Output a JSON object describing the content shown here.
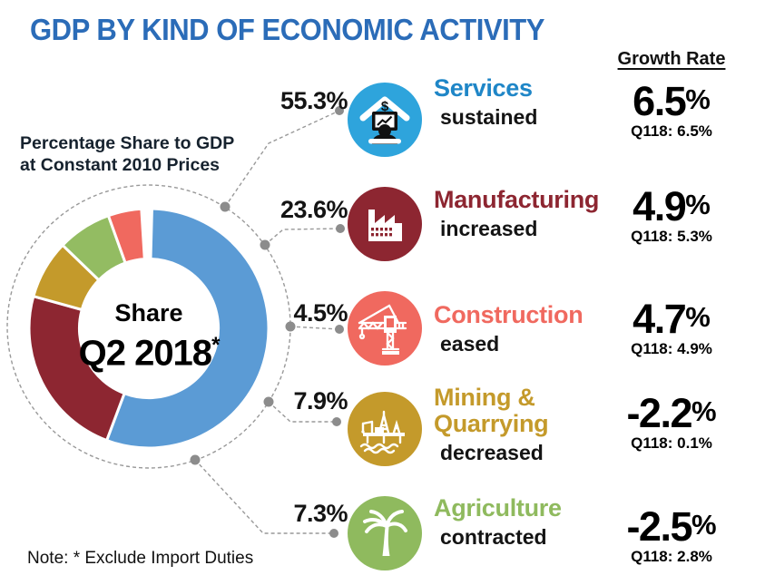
{
  "title": "GDP BY KIND OF ECONOMIC ACTIVITY",
  "growth_header": "Growth Rate",
  "subtitle": {
    "line1": "Percentage Share to GDP",
    "line2": "at Constant 2010 Prices"
  },
  "donut_center": {
    "share_label": "Share",
    "period": "Q2 2018",
    "asterisk": "*"
  },
  "note": "Note: * Exclude Import Duties",
  "percent_sign": "%",
  "colors": {
    "title_blue": "#2B6CB8",
    "services_blue": "#1F86C7",
    "services_icon_bg": "#2EA4DC",
    "manufacturing_red": "#8D2631",
    "construction_salmon": "#F0695F",
    "mining_gold": "#C49A2B",
    "agriculture_green": "#8FBA5E",
    "donut_services": "#5B9BD5",
    "connector_gray": "#8C8C8C"
  },
  "sectors": [
    {
      "id": "services",
      "pct_label": "55.3%",
      "name_lines": [
        "Services"
      ],
      "trend": "sustained",
      "growth": "6.5",
      "prior": "Q118: 6.5%",
      "color": "#1F86C7",
      "icon_bg": "#2EA4DC"
    },
    {
      "id": "manufacturing",
      "pct_label": "23.6%",
      "name_lines": [
        "Manufacturing"
      ],
      "trend": "increased",
      "growth": "4.9",
      "prior": "Q118: 5.3%",
      "color": "#8D2631",
      "icon_bg": "#8D2631"
    },
    {
      "id": "construction",
      "pct_label": "4.5%",
      "name_lines": [
        "Construction"
      ],
      "trend": "eased",
      "growth": "4.7",
      "prior": "Q118: 4.9%",
      "color": "#F0695F",
      "icon_bg": "#F0695F"
    },
    {
      "id": "mining",
      "pct_label": "7.9%",
      "name_lines": [
        "Mining &",
        "Quarrying"
      ],
      "trend": "decreased",
      "growth": "-2.2",
      "prior": "Q118: 0.1%",
      "color": "#C49A2B",
      "icon_bg": "#C49A2B"
    },
    {
      "id": "agriculture",
      "pct_label": "7.3%",
      "name_lines": [
        "Agriculture"
      ],
      "trend": "contracted",
      "growth": "-2.5",
      "prior": "Q118: 2.8%",
      "color": "#8FBA5E",
      "icon_bg": "#8FBA5E"
    }
  ],
  "chart_data": {
    "type": "pie",
    "subtype": "donut",
    "categories": [
      "Services",
      "Manufacturing",
      "Mining & Quarrying",
      "Agriculture",
      "Construction"
    ],
    "values": [
      55.3,
      23.6,
      7.9,
      7.3,
      4.5
    ],
    "colors": [
      "#5B9BD5",
      "#8D2631",
      "#C49A2B",
      "#93BC62",
      "#F0695F"
    ],
    "data_labels": [
      "55.3%",
      "23.6%",
      "7.9%",
      "7.3%",
      "4.5%"
    ],
    "center_label": "Share Q2 2018*",
    "title": "Percentage Share to GDP at Constant 2010 Prices",
    "start_angle_deg": 1.5,
    "direction": "clockwise",
    "inner_radius_ratio": 0.58,
    "legend_position": "none",
    "growth_rates_pct": {
      "Services": 6.5,
      "Manufacturing": 4.9,
      "Construction": 4.7,
      "Mining & Quarrying": -2.2,
      "Agriculture": -2.5
    },
    "prior_quarter_growth_pct": {
      "Services": 6.5,
      "Manufacturing": 5.3,
      "Construction": 4.9,
      "Mining & Quarrying": 0.1,
      "Agriculture": 2.8
    }
  }
}
